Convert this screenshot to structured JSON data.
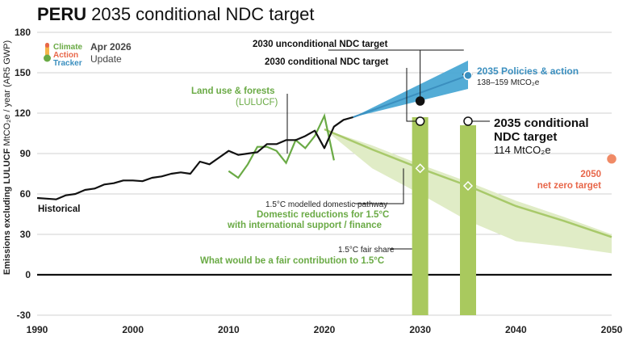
{
  "title": {
    "bold": "PERU",
    "rest": "2035 conditional NDC target"
  },
  "logo": {
    "line1": "Climate",
    "line2": "Action",
    "line3": "Tracker"
  },
  "update": {
    "date": "Apr 2026",
    "label": "Update"
  },
  "axis": {
    "ylabel_bold": "Emissions excluding LULUCF",
    "ylabel_rest": " MtCO₂e / year (AR5 GWP)",
    "x_ticks": [
      "1990",
      "2000",
      "2010",
      "2020",
      "2030",
      "2040",
      "2050"
    ],
    "y_ticks": [
      "180",
      "150",
      "120",
      "90",
      "60",
      "30",
      "0",
      "-30"
    ]
  },
  "annotations": {
    "unconditional": "2030 unconditional NDC target",
    "conditional_2030": "2030 conditional NDC target",
    "policies_title": "2035 Policies & action",
    "policies_range": "138–159 MtCO₂e",
    "lulucf_1": "Land use & forests",
    "lulucf_2": "(LULUCF)",
    "conditional_2035_1": "2035 conditional",
    "conditional_2035_2": "NDC target",
    "conditional_2035_3": "114 MtCO₂e",
    "netzero_1": "2050",
    "netzero_2": "net zero target",
    "historical": "Historical",
    "pathway": "1.5°C modelled domestic pathway",
    "domestic_1": "Domestic reductions for 1.5°C",
    "domestic_2": "with international support / finance",
    "fairshare": "1.5°C fair share",
    "fair_contribution": "What would be a fair contribution to 1.5°C"
  },
  "colors": {
    "historical": "#111111",
    "lulucf": "#6aaa45",
    "policy_band": "#4aa8d4",
    "policy_line": "#3b8fbf",
    "pathway": "#a8c96a",
    "domestic_band": "#e0ecc6",
    "fair_bar": "#a9c95e",
    "netzero": "#f08a66"
  },
  "chart_data": {
    "type": "line",
    "xlim": [
      1990,
      2050
    ],
    "ylim": [
      -30,
      180
    ],
    "grid": "horizontal",
    "historical": {
      "x": [
        1990,
        1991,
        1992,
        1993,
        1994,
        1995,
        1996,
        1997,
        1998,
        1999,
        2000,
        2001,
        2002,
        2003,
        2004,
        2005,
        2006,
        2007,
        2008,
        2009,
        2010,
        2011,
        2012,
        2013,
        2014,
        2015,
        2016,
        2017,
        2018,
        2019,
        2020,
        2021,
        2022,
        2023
      ],
      "y": [
        57,
        56.5,
        56,
        59,
        60,
        63,
        64,
        67,
        68,
        70,
        70,
        69.5,
        72,
        73,
        75,
        76,
        75,
        84,
        82,
        87,
        92,
        89,
        90,
        91,
        97,
        97,
        100,
        100,
        103,
        107,
        94,
        110,
        115,
        117
      ]
    },
    "lulucf": {
      "x": [
        2010,
        2011,
        2012,
        2013,
        2014,
        2015,
        2016,
        2017,
        2018,
        2019,
        2020,
        2021
      ],
      "y": [
        77,
        72,
        82,
        95,
        95,
        92,
        83,
        100,
        94,
        103,
        118,
        85
      ]
    },
    "policies_2035": {
      "x": [
        2023,
        2035
      ],
      "low": [
        117,
        138
      ],
      "high": [
        117,
        159
      ],
      "mid": [
        117,
        148
      ]
    },
    "pathway_15c": {
      "x": [
        2020,
        2025,
        2030,
        2035,
        2040,
        2045,
        2050
      ],
      "y": [
        108,
        93,
        79,
        66,
        51,
        40,
        28
      ]
    },
    "domestic_band": {
      "x": [
        2020,
        2025,
        2030,
        2035,
        2040,
        2045,
        2050
      ],
      "upper": [
        108,
        96,
        82,
        69,
        55,
        43,
        30
      ],
      "lower": [
        108,
        79,
        60,
        40,
        25,
        21,
        16
      ]
    },
    "fair_share_bars": [
      {
        "year": 2030,
        "low": -30,
        "high": 117
      },
      {
        "year": 2035,
        "low": -30,
        "high": 111
      }
    ],
    "targets": {
      "unconditional_2030": 129,
      "conditional_2030": 114,
      "conditional_2035": 114,
      "pathway_2030": 79,
      "pathway_2035": 66,
      "policies_2035": 148,
      "netzero_2050": 86
    }
  }
}
